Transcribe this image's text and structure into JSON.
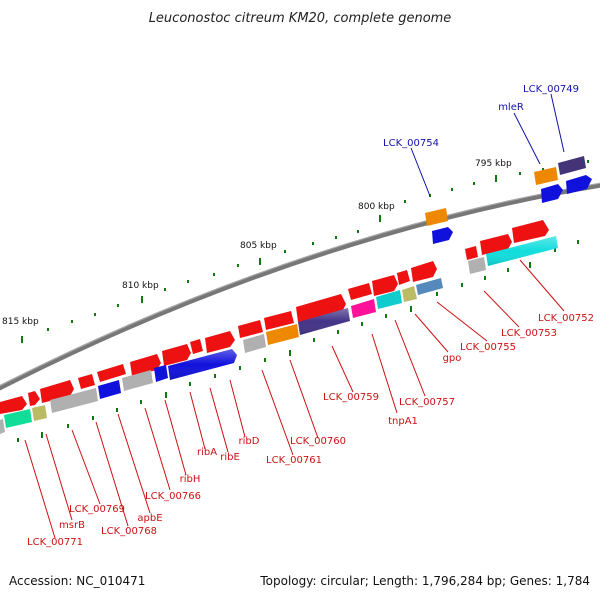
{
  "title": "Leuconostoc citreum KM20, complete genome",
  "footer": {
    "accession": "Accession: NC_010471",
    "topology": "Topology: circular; Length: 1,796,284 bp; Genes: 1,784"
  },
  "scale_labels": [
    "795 kbp",
    "800 kbp",
    "805 kbp",
    "810 kbp",
    "815 kbp"
  ],
  "labels_above": [
    "LCK_00749",
    "mleR",
    "LCK_00754"
  ],
  "labels_below": [
    "LCK_00752",
    "LCK_00753",
    "LCK_00755",
    "gpo",
    "LCK_00757",
    "tnpA1",
    "LCK_00759",
    "LCK_00760",
    "LCK_00761",
    "ribD",
    "ribE",
    "ribA",
    "ribH",
    "LCK_00766",
    "apbE",
    "LCK_00768",
    "LCK_00769",
    "msrB",
    "LCK_00771"
  ],
  "colors": {
    "backbone": "#777777",
    "forward_gene": "#ee1111",
    "reverse_blue": "#1111dd",
    "tick": "#117711",
    "label_above": "#1111aa",
    "label_below": "#cc1111"
  }
}
